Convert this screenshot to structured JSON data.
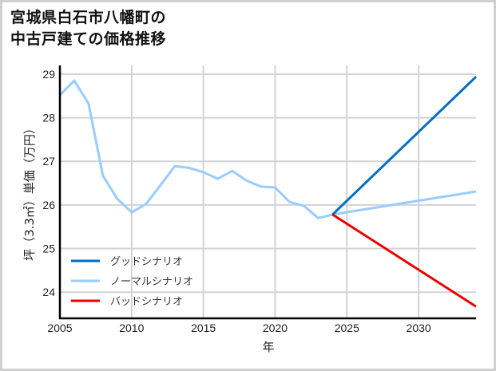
{
  "header": {
    "title": "宮城県白石市八幡町の\n中古戸建ての価格推移"
  },
  "chart_data": {
    "type": "line",
    "title": "宮城県白石市八幡町の中古戸建ての価格推移",
    "xlabel": "年",
    "ylabel": "坪（3.3㎡）単価（万円）",
    "xlim": [
      2005,
      2034
    ],
    "ylim": [
      23.4,
      29.2
    ],
    "xticks": [
      2005,
      2010,
      2015,
      2020,
      2025,
      2030
    ],
    "yticks": [
      24,
      25,
      26,
      27,
      28,
      29
    ],
    "grid": true,
    "legend_position": "lower left",
    "series": [
      {
        "name": "グッドシナリオ",
        "color": "#0070c8",
        "x": [
          2024,
          2034
        ],
        "values": [
          25.78,
          28.94
        ]
      },
      {
        "name": "ノーマルシナリオ",
        "color": "#99ccff",
        "x": [
          2005,
          2006,
          2007,
          2008,
          2009,
          2010,
          2011,
          2012,
          2013,
          2014,
          2015,
          2016,
          2017,
          2018,
          2019,
          2020,
          2021,
          2022,
          2023,
          2024,
          2034
        ],
        "values": [
          28.52,
          28.85,
          28.32,
          26.67,
          26.14,
          25.83,
          26.02,
          26.45,
          26.89,
          26.85,
          26.75,
          26.6,
          26.78,
          26.56,
          26.42,
          26.4,
          26.07,
          25.98,
          25.7,
          25.78,
          26.31
        ]
      },
      {
        "name": "バッドシナリオ",
        "color": "#ee0000",
        "x": [
          2024,
          2034
        ],
        "values": [
          25.78,
          23.67
        ]
      }
    ]
  }
}
